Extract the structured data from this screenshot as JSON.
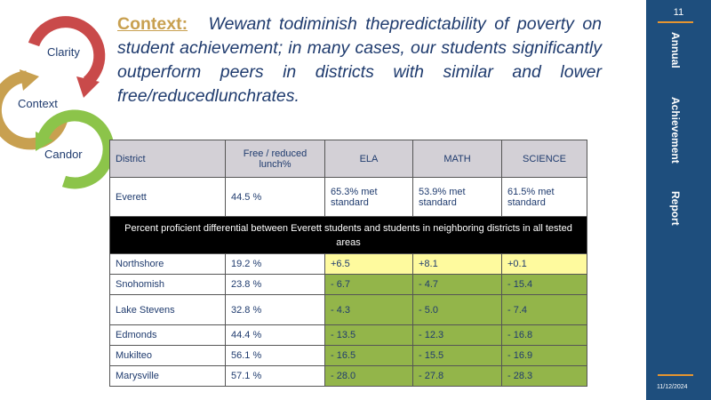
{
  "cycle": {
    "labels": [
      "Clarity",
      "Context",
      "Candor"
    ],
    "colors": {
      "clarity": "#c94a4a",
      "context": "#c8a050",
      "candor": "#8cc44a"
    }
  },
  "context": {
    "label": "Context:",
    "text": "Wewant todiminish thepredictability of poverty on student achievement; in many cases, our students significantly outperform peers in districts with similar and lower free/reducedlunchrates."
  },
  "table": {
    "headers": [
      "District",
      "Free / reduced lunch%",
      "ELA",
      "MATH",
      "SCIENCE"
    ],
    "everett": {
      "district": "Everett",
      "frl": "44.5 %",
      "ela": "65.3% met standard",
      "math": "53.9% met standard",
      "science": "61.5% met standard"
    },
    "banner": "Percent proficient differential between Everett students and students in neighboring districts in all tested areas",
    "rows": [
      {
        "district": "Northshore",
        "frl": "19.2 %",
        "ela": "+6.5",
        "math": "+8.1",
        "science": "+0.1"
      },
      {
        "district": "Snohomish",
        "frl": "23.8 %",
        "ela": "- 6.7",
        "math": "- 4.7",
        "science": "- 15.4"
      },
      {
        "district": "Lake Stevens",
        "frl": "32.8 %",
        "ela": "- 4.3",
        "math": "- 5.0",
        "science": "- 7.4"
      },
      {
        "district": "Edmonds",
        "frl": "44.4 %",
        "ela": "- 13.5",
        "math": "- 12.3",
        "science": "- 16.8"
      },
      {
        "district": "Mukilteo",
        "frl": "56.1 %",
        "ela": "- 16.5",
        "math": "- 15.5",
        "science": "- 16.9"
      },
      {
        "district": "Marysville",
        "frl": "57.1 %",
        "ela": "- 28.0",
        "math": "- 27.8",
        "science": "- 28.3"
      }
    ]
  },
  "sidebar": {
    "page_number": "11",
    "title_words": [
      "Annual",
      "Achievement",
      "Report"
    ],
    "date": "11/12/2024",
    "accent": "#e69530",
    "background": "#1e4e7d"
  }
}
